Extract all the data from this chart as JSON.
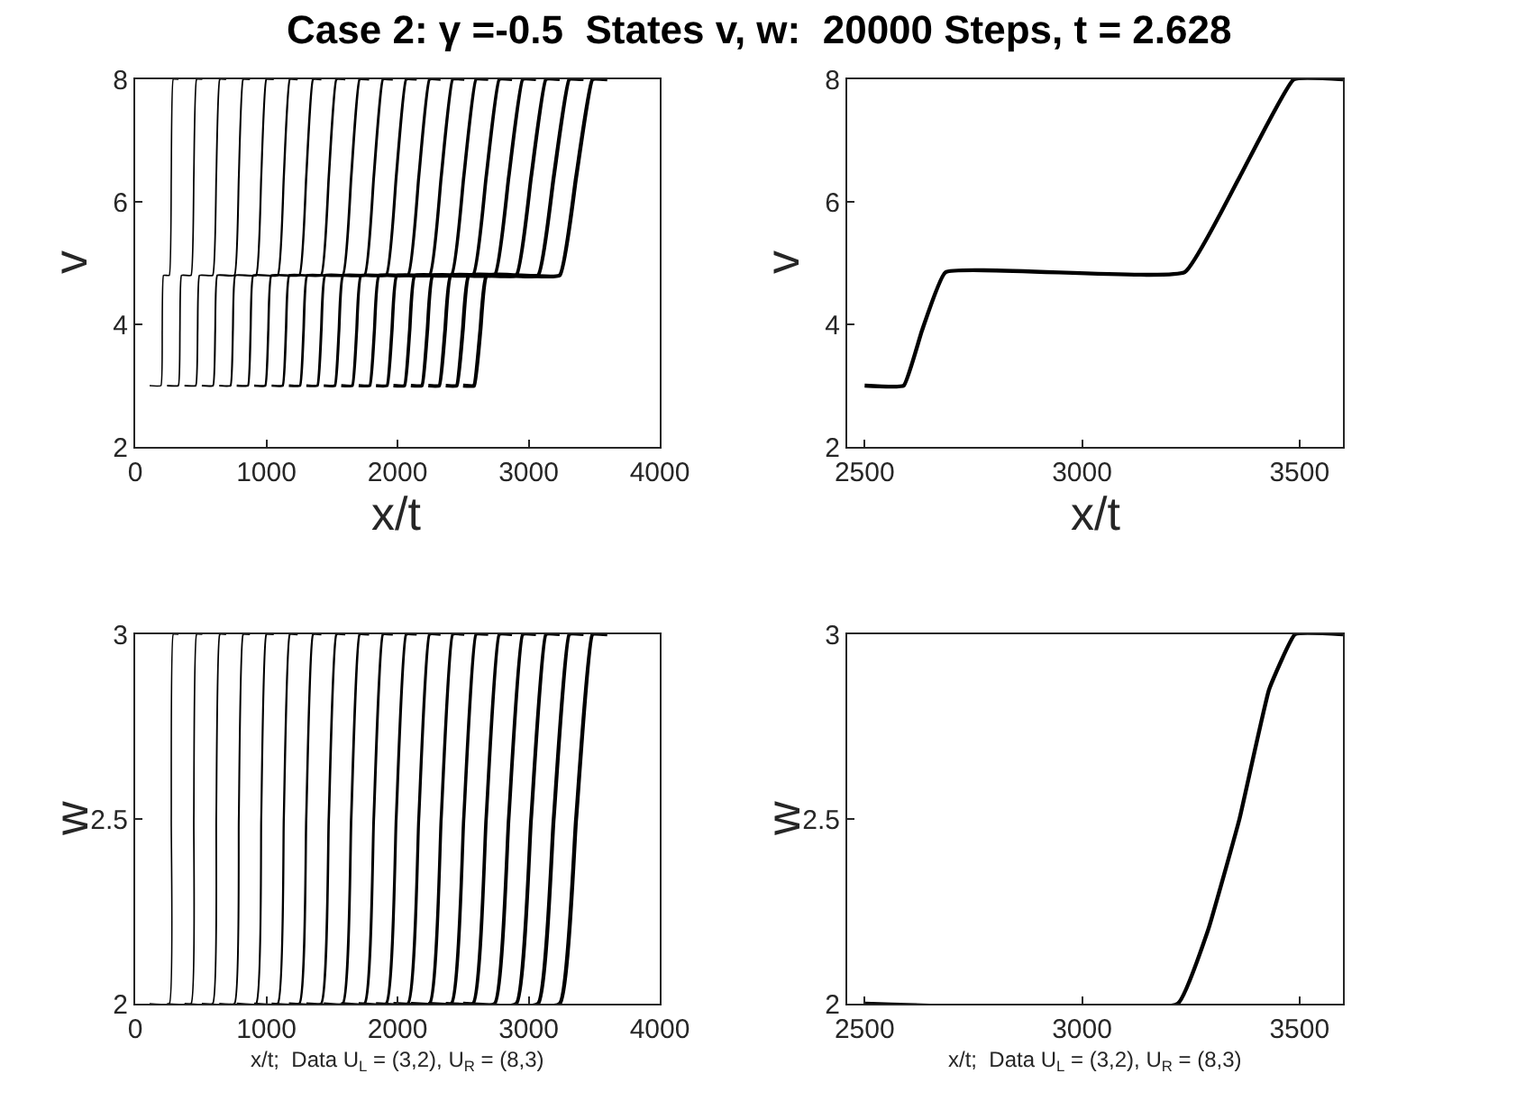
{
  "chart_data": [
    {
      "type": "line",
      "title": "Case 2: γ =-0.5  States v, w:  20000 Steps, t = 2.628",
      "xlabel": "x/t",
      "ylabel": "v",
      "xlim": [
        0,
        4000
      ],
      "xticks": [
        0,
        1000,
        2000,
        3000,
        4000
      ],
      "ylim": [
        2,
        8
      ],
      "yticks": [
        2,
        4,
        6,
        8
      ],
      "series": [
        {
          "color": "#000000",
          "x": [
            110,
            196,
            206,
            216,
            260,
            275,
            290,
            330
          ],
          "values": [
            3,
            3,
            3.9,
            4.8,
            4.8,
            6.4,
            8,
            8
          ]
        },
        {
          "color": "#000000",
          "x": [
            243,
            329,
            341,
            353,
            426,
            447,
            468,
            512
          ],
          "values": [
            3,
            3,
            3.9,
            4.8,
            4.8,
            6.4,
            8,
            8
          ]
        },
        {
          "color": "#000000",
          "x": [
            376,
            462,
            476,
            490,
            591,
            618,
            645,
            693
          ],
          "values": [
            3,
            3,
            3.9,
            4.8,
            4.8,
            6.4,
            8,
            8
          ]
        },
        {
          "color": "#000000",
          "x": [
            508,
            594,
            610,
            626,
            757,
            790,
            823,
            875
          ],
          "values": [
            3,
            3,
            3.9,
            4.8,
            4.8,
            6.4,
            8,
            8
          ]
        },
        {
          "color": "#000000",
          "x": [
            641,
            727,
            745,
            763,
            922,
            961,
            1000,
            1057
          ],
          "values": [
            3,
            3,
            3.9,
            4.8,
            4.8,
            6.4,
            8,
            8
          ]
        },
        {
          "color": "#000000",
          "x": [
            774,
            860,
            880,
            900,
            1087,
            1133,
            1179,
            1239
          ],
          "values": [
            3,
            3,
            3.9,
            4.8,
            4.8,
            6.4,
            8,
            8
          ]
        },
        {
          "color": "#000000",
          "x": [
            907,
            992,
            1015,
            1038,
            1252,
            1304,
            1356,
            1420
          ],
          "values": [
            3,
            3,
            3.9,
            4.8,
            4.8,
            6.4,
            8,
            8
          ]
        },
        {
          "color": "#000000",
          "x": [
            1040,
            1125,
            1150,
            1175,
            1418,
            1476,
            1534,
            1602
          ],
          "values": [
            3,
            3,
            3.9,
            4.8,
            4.8,
            6.4,
            8,
            8
          ]
        },
        {
          "color": "#000000",
          "x": [
            1172,
            1257,
            1284,
            1311,
            1583,
            1647,
            1711,
            1784
          ],
          "values": [
            3,
            3,
            3.9,
            4.8,
            4.8,
            6.4,
            8,
            8
          ]
        },
        {
          "color": "#000000",
          "x": [
            1305,
            1390,
            1419,
            1448,
            1749,
            1819,
            1889,
            1965
          ],
          "values": [
            3,
            3,
            3.9,
            4.8,
            4.8,
            6.4,
            8,
            8
          ]
        },
        {
          "color": "#000000",
          "x": [
            1438,
            1523,
            1554,
            1585,
            1914,
            1990,
            2066,
            2147
          ],
          "values": [
            3,
            3,
            3.9,
            4.8,
            4.8,
            6.4,
            8,
            8
          ]
        },
        {
          "color": "#000000",
          "x": [
            1571,
            1656,
            1689,
            1722,
            2080,
            2162,
            2244,
            2329
          ],
          "values": [
            3,
            3,
            3.9,
            4.8,
            4.8,
            6.4,
            8,
            8
          ]
        },
        {
          "color": "#000000",
          "x": [
            1704,
            1789,
            1824,
            1859,
            2245,
            2333,
            2421,
            2510
          ],
          "values": [
            3,
            3,
            3.9,
            4.8,
            4.8,
            6.4,
            8,
            8
          ]
        },
        {
          "color": "#000000",
          "x": [
            1836,
            1921,
            1958,
            1995,
            2411,
            2505,
            2599,
            2692
          ],
          "values": [
            3,
            3,
            3.9,
            4.8,
            4.8,
            6.4,
            8,
            8
          ]
        },
        {
          "color": "#000000",
          "x": [
            1969,
            2054,
            2093,
            2132,
            2576,
            2676,
            2776,
            2874
          ],
          "values": [
            3,
            3,
            3.9,
            4.8,
            4.8,
            6.4,
            8,
            8
          ]
        },
        {
          "color": "#000000",
          "x": [
            2102,
            2187,
            2228,
            2269,
            2741,
            2848,
            2955,
            3056
          ],
          "values": [
            3,
            3,
            3.9,
            4.8,
            4.8,
            6.4,
            8,
            8
          ]
        },
        {
          "color": "#000000",
          "x": [
            2235,
            2319,
            2363,
            2407,
            2906,
            3019,
            3132,
            3237
          ],
          "values": [
            3,
            3,
            3.9,
            4.8,
            4.8,
            6.4,
            8,
            8
          ]
        },
        {
          "color": "#000000",
          "x": [
            2368,
            2452,
            2498,
            2544,
            3072,
            3191,
            3310,
            3419
          ],
          "values": [
            3,
            3,
            3.9,
            4.8,
            4.8,
            6.4,
            8,
            8
          ]
        },
        {
          "color": "#000000",
          "x": [
            2500,
            2584,
            2632,
            2680,
            3237,
            3362,
            3487,
            3600
          ],
          "values": [
            3,
            3,
            3.9,
            4.8,
            4.8,
            6.4,
            8,
            8
          ]
        }
      ]
    },
    {
      "type": "line",
      "xlabel": "x/t",
      "ylabel": "v",
      "xlim": [
        2460,
        3600
      ],
      "xticks": [
        2500,
        3000,
        3500
      ],
      "ylim": [
        2,
        8
      ],
      "yticks": [
        2,
        4,
        6,
        8
      ],
      "series": [
        {
          "color": "#000000",
          "x": [
            2500,
            2590,
            2632,
            2686,
            3236,
            3362,
            3487,
            3600
          ],
          "values": [
            3,
            3,
            3.9,
            4.85,
            4.85,
            6.4,
            8,
            8
          ]
        }
      ]
    },
    {
      "type": "line",
      "xlabel": "x/t;  Data U$_{L}$ = (3,2), U$_{R}$ = (8,3)",
      "ylabel": "w",
      "xlim": [
        0,
        4000
      ],
      "xticks": [
        0,
        1000,
        2000,
        3000,
        4000
      ],
      "ylim": [
        2,
        3
      ],
      "yticks": [
        2,
        2.5,
        3
      ],
      "series": [
        {
          "color": "#000000",
          "x": [
            110,
            260,
            275,
            290,
            330
          ],
          "values": [
            2,
            2,
            2.5,
            3,
            3
          ]
        },
        {
          "color": "#000000",
          "x": [
            243,
            426,
            447,
            468,
            512
          ],
          "values": [
            2,
            2,
            2.5,
            3,
            3
          ]
        },
        {
          "color": "#000000",
          "x": [
            376,
            591,
            618,
            645,
            693
          ],
          "values": [
            2,
            2,
            2.5,
            3,
            3
          ]
        },
        {
          "color": "#000000",
          "x": [
            508,
            757,
            790,
            823,
            875
          ],
          "values": [
            2,
            2,
            2.5,
            3,
            3
          ]
        },
        {
          "color": "#000000",
          "x": [
            641,
            922,
            961,
            1000,
            1057
          ],
          "values": [
            2,
            2,
            2.5,
            3,
            3
          ]
        },
        {
          "color": "#000000",
          "x": [
            774,
            1087,
            1133,
            1179,
            1239
          ],
          "values": [
            2,
            2,
            2.5,
            3,
            3
          ]
        },
        {
          "color": "#000000",
          "x": [
            907,
            1252,
            1304,
            1356,
            1420
          ],
          "values": [
            2,
            2,
            2.5,
            3,
            3
          ]
        },
        {
          "color": "#000000",
          "x": [
            1040,
            1418,
            1476,
            1534,
            1602
          ],
          "values": [
            2,
            2,
            2.5,
            3,
            3
          ]
        },
        {
          "color": "#000000",
          "x": [
            1172,
            1583,
            1647,
            1711,
            1784
          ],
          "values": [
            2,
            2,
            2.5,
            3,
            3
          ]
        },
        {
          "color": "#000000",
          "x": [
            1305,
            1749,
            1819,
            1889,
            1965
          ],
          "values": [
            2,
            2,
            2.5,
            3,
            3
          ]
        },
        {
          "color": "#000000",
          "x": [
            1438,
            1914,
            1990,
            2066,
            2147
          ],
          "values": [
            2,
            2,
            2.5,
            3,
            3
          ]
        },
        {
          "color": "#000000",
          "x": [
            1571,
            2080,
            2162,
            2244,
            2329
          ],
          "values": [
            2,
            2,
            2.5,
            3,
            3
          ]
        },
        {
          "color": "#000000",
          "x": [
            1704,
            2245,
            2333,
            2421,
            2510
          ],
          "values": [
            2,
            2,
            2.5,
            3,
            3
          ]
        },
        {
          "color": "#000000",
          "x": [
            1836,
            2411,
            2505,
            2599,
            2692
          ],
          "values": [
            2,
            2,
            2.5,
            3,
            3
          ]
        },
        {
          "color": "#000000",
          "x": [
            1969,
            2576,
            2676,
            2776,
            2874
          ],
          "values": [
            2,
            2,
            2.5,
            3,
            3
          ]
        },
        {
          "color": "#000000",
          "x": [
            2102,
            2741,
            2848,
            2955,
            3056
          ],
          "values": [
            2,
            2,
            2.5,
            3,
            3
          ]
        },
        {
          "color": "#000000",
          "x": [
            2235,
            2906,
            3019,
            3132,
            3237
          ],
          "values": [
            2,
            2,
            2.5,
            3,
            3
          ]
        },
        {
          "color": "#000000",
          "x": [
            2368,
            3072,
            3191,
            3310,
            3419
          ],
          "values": [
            2,
            2,
            2.5,
            3,
            3
          ]
        },
        {
          "color": "#000000",
          "x": [
            2500,
            3237,
            3362,
            3487,
            3600
          ],
          "values": [
            2,
            2,
            2.5,
            3,
            3
          ]
        }
      ]
    },
    {
      "type": "line",
      "xlabel": "x/t;  Data U$_{L}$ = (3,2), U$_{R}$ = (8,3)",
      "ylabel": "w",
      "xlim": [
        2460,
        3600
      ],
      "xticks": [
        2500,
        3000,
        3500
      ],
      "ylim": [
        2,
        3
      ],
      "yticks": [
        2,
        2.5,
        3
      ],
      "series": [
        {
          "color": "#000000",
          "x": [
            2500,
            3220,
            3290,
            3362,
            3430,
            3490,
            3600
          ],
          "values": [
            2,
            2,
            2.2,
            2.5,
            2.85,
            3,
            3
          ]
        }
      ]
    }
  ]
}
